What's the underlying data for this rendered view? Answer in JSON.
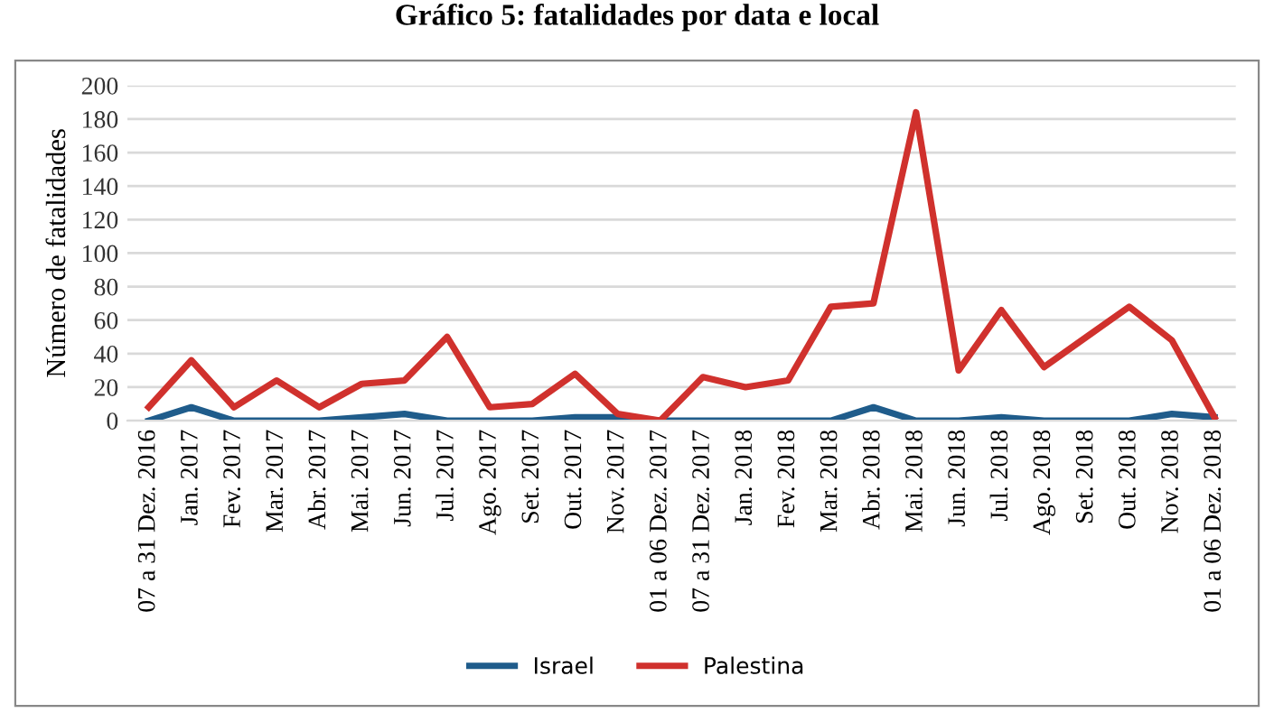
{
  "chart_data": {
    "type": "line",
    "title": "Gráfico 5: fatalidades por data e local",
    "ylabel": "Número de fatalidades",
    "categories": [
      "07 a 31 Dez. 2016",
      "Jan. 2017",
      "Fev. 2017",
      "Mar. 2017",
      "Abr. 2017",
      "Mai. 2017",
      "Jun. 2017",
      "Jul. 2017",
      "Ago. 2017",
      "Set. 2017",
      "Out. 2017",
      "Nov. 2017",
      "01 a 06 Dez. 2017",
      "07 a 31 Dez. 2017",
      "Jan. 2018",
      "Fev. 2018",
      "Mar. 2018",
      "Abr. 2018",
      "Mai. 2018",
      "Jun. 2018",
      "Jul. 2018",
      "Ago. 2018",
      "Set. 2018",
      "Out. 2018",
      "Nov. 2018",
      "01 a 06 Dez. 2018"
    ],
    "series": [
      {
        "name": "Israel",
        "color": "#1f5c8b",
        "values": [
          0,
          8,
          0,
          0,
          0,
          2,
          4,
          0,
          0,
          0,
          2,
          2,
          0,
          0,
          0,
          0,
          0,
          8,
          0,
          0,
          2,
          0,
          0,
          0,
          4,
          2
        ]
      },
      {
        "name": "Palestina",
        "color": "#d0312d",
        "values": [
          8,
          36,
          8,
          24,
          8,
          22,
          24,
          50,
          8,
          10,
          28,
          4,
          0,
          26,
          20,
          24,
          68,
          70,
          184,
          30,
          66,
          32,
          50,
          68,
          48,
          2
        ]
      }
    ],
    "ylim": [
      0,
      200
    ],
    "yticks": [
      0,
      20,
      40,
      60,
      80,
      100,
      120,
      140,
      160,
      180,
      200
    ],
    "grid": "y",
    "legend": "bottom",
    "marker": "none",
    "line_style": "solid"
  }
}
